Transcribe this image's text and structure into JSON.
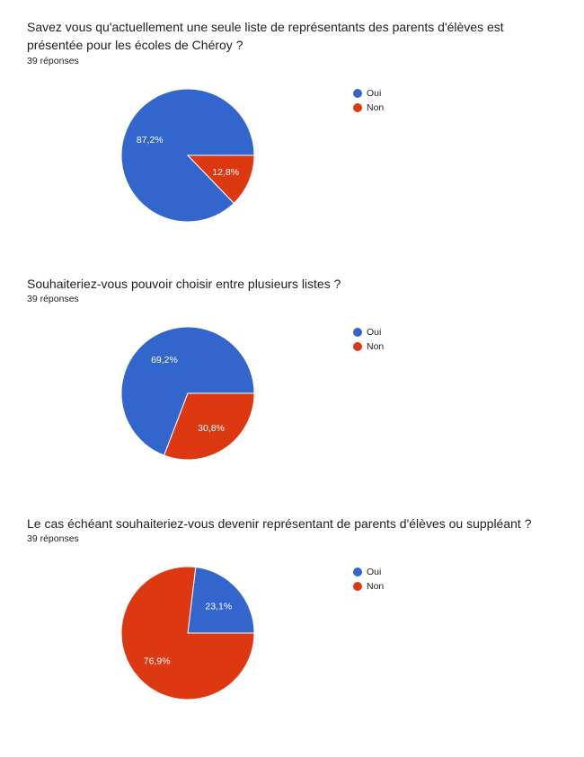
{
  "colors": {
    "oui": "#3366cc",
    "non": "#dc3912"
  },
  "chart_data": [
    {
      "type": "pie",
      "title": "Savez vous qu'actuellement une seule liste de représentants des parents d'élèves est présentée pour les écoles de Chéroy ?",
      "subtitle": "39 réponses",
      "categories": [
        "Oui",
        "Non"
      ],
      "values": [
        87.2,
        12.8
      ],
      "labels": [
        "87,2%",
        "12,8%"
      ],
      "legend": "right"
    },
    {
      "type": "pie",
      "title": "Souhaiteriez-vous pouvoir choisir entre plusieurs listes ?",
      "subtitle": "39 réponses",
      "categories": [
        "Oui",
        "Non"
      ],
      "values": [
        69.2,
        30.8
      ],
      "labels": [
        "69,2%",
        "30,8%"
      ],
      "legend": "right"
    },
    {
      "type": "pie",
      "title": "Le cas échéant souhaiteriez-vous devenir représentant de parents d'élèves ou suppléant ?",
      "subtitle": "39 réponses",
      "categories": [
        "Oui",
        "Non"
      ],
      "values": [
        23.1,
        76.9
      ],
      "labels": [
        "23,1%",
        "76,9%"
      ],
      "legend": "right"
    }
  ]
}
